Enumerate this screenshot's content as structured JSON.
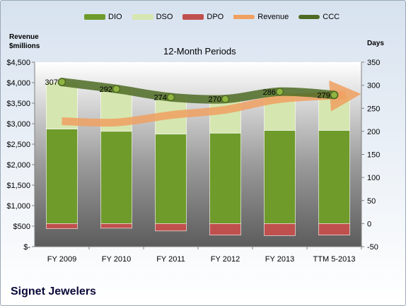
{
  "chart_data": {
    "type": "bar",
    "title": "12-Month Periods",
    "categories": [
      "FY 2009",
      "FY 2010",
      "FY 2011",
      "FY 2012",
      "FY 2013",
      "TTM 5-2013"
    ],
    "left_axis": {
      "label": "Revenue\n$millions",
      "ylim": [
        0,
        4500
      ],
      "ticks": [
        0,
        500,
        1000,
        1500,
        2000,
        2500,
        3000,
        3500,
        4000,
        4500
      ],
      "tick_labels": [
        "$-",
        "$500",
        "$1,000",
        "$1,500",
        "$2,000",
        "$2,500",
        "$3,000",
        "$3,500",
        "$4,000",
        "$4,500"
      ]
    },
    "right_axis": {
      "label": "Days",
      "ylim": [
        -50,
        350
      ],
      "ticks": [
        -50,
        0,
        50,
        100,
        150,
        200,
        250,
        300,
        350
      ]
    },
    "stacked_series": [
      {
        "name": "DIO",
        "axis": "right",
        "color": "#6f9b2b",
        "values": [
          205,
          200,
          194,
          196,
          202,
          202
        ]
      },
      {
        "name": "DSO",
        "axis": "right",
        "color": "#d6e6b0",
        "values": [
          102,
          92,
          80,
          74,
          84,
          77
        ]
      },
      {
        "name": "DPO",
        "axis": "right",
        "color": "#c0504d",
        "values": [
          -11,
          -10,
          -16,
          -25,
          -26,
          -25
        ]
      }
    ],
    "line_series": [
      {
        "name": "Revenue",
        "axis": "left",
        "color": "#f0a060",
        "values": [
          3060,
          3030,
          3210,
          3340,
          3600,
          3700
        ]
      },
      {
        "name": "CCC",
        "axis": "right",
        "color": "#4e6b24",
        "values": [
          307,
          292,
          274,
          270,
          286,
          279
        ],
        "data_labels": [
          "307",
          "292",
          "274",
          "270",
          "286",
          "279"
        ]
      }
    ],
    "legend": [
      "DIO",
      "DSO",
      "DPO",
      "Revenue",
      "CCC"
    ],
    "legend_position": "top",
    "grid": false
  },
  "company": "Signet Jewelers"
}
